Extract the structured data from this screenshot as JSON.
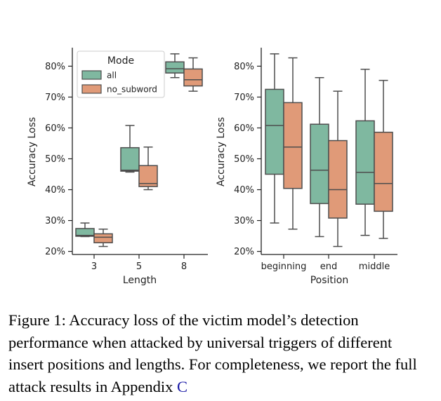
{
  "chart_data": [
    {
      "type": "box",
      "xlabel": "Length",
      "ylabel": "Accuracy Loss",
      "ylim": [
        19,
        86
      ],
      "yticks": [
        "20%",
        "30%",
        "40%",
        "50%",
        "60%",
        "70%",
        "80%"
      ],
      "categories": [
        "3",
        "5",
        "8"
      ],
      "legend": {
        "title": "Mode",
        "position": "top-left",
        "entries": [
          "all",
          "no_subword"
        ]
      },
      "series": [
        {
          "name": "all",
          "color": "#7fb8a0",
          "boxes": [
            {
              "min": 24.8,
              "q1": 24.9,
              "median": 25.2,
              "q3": 27.4,
              "max": 29.2
            },
            {
              "min": 45.7,
              "q1": 46.0,
              "median": 46.3,
              "q3": 53.6,
              "max": 60.8
            },
            {
              "min": 76.3,
              "q1": 77.8,
              "median": 79.2,
              "q3": 81.4,
              "max": 84.0
            }
          ]
        },
        {
          "name": "no_subword",
          "color": "#e09a78",
          "boxes": [
            {
              "min": 21.6,
              "q1": 22.8,
              "median": 24.6,
              "q3": 25.7,
              "max": 27.2
            },
            {
              "min": 40.0,
              "q1": 41.0,
              "median": 42.0,
              "q3": 47.8,
              "max": 53.8
            },
            {
              "min": 71.9,
              "q1": 73.6,
              "median": 75.6,
              "q3": 79.1,
              "max": 82.7
            }
          ]
        }
      ]
    },
    {
      "type": "box",
      "xlabel": "Position",
      "ylabel": "Accuracy Loss",
      "ylim": [
        19,
        86
      ],
      "yticks": [
        "20%",
        "30%",
        "40%",
        "50%",
        "60%",
        "70%",
        "80%"
      ],
      "categories": [
        "beginning",
        "end",
        "middle"
      ],
      "series": [
        {
          "name": "all",
          "color": "#7fb8a0",
          "boxes": [
            {
              "min": 29.2,
              "q1": 45.0,
              "median": 60.8,
              "q3": 72.5,
              "max": 84.0
            },
            {
              "min": 24.8,
              "q1": 35.5,
              "median": 46.3,
              "q3": 61.2,
              "max": 76.3
            },
            {
              "min": 25.2,
              "q1": 35.3,
              "median": 45.6,
              "q3": 62.3,
              "max": 79.0
            }
          ]
        },
        {
          "name": "no_subword",
          "color": "#e09a78",
          "boxes": [
            {
              "min": 27.2,
              "q1": 40.4,
              "median": 53.8,
              "q3": 68.2,
              "max": 82.7
            },
            {
              "min": 21.6,
              "q1": 30.8,
              "median": 40.0,
              "q3": 55.9,
              "max": 71.9
            },
            {
              "min": 24.2,
              "q1": 33.0,
              "median": 42.0,
              "q3": 58.6,
              "max": 75.4
            }
          ]
        }
      ]
    }
  ],
  "caption": {
    "text": "Figure 1: Accuracy loss of the victim model’s detection performance when attacked by universal triggers of different insert positions and lengths.  For completeness, we report the full attack results in Appendix ",
    "ref": "C"
  }
}
